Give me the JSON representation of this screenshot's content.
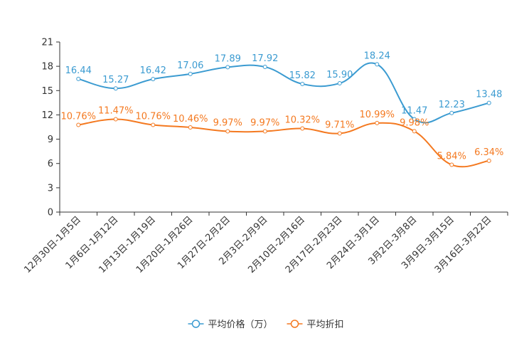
{
  "chart_data": {
    "type": "line",
    "title": "",
    "xlabel": "",
    "ylabel": "",
    "ylim": [
      0,
      21
    ],
    "yticks": [
      0,
      3,
      6,
      9,
      12,
      15,
      18,
      21
    ],
    "categories": [
      "12月30日-1月5日",
      "1月6日-1月12日",
      "1月13日-1月19日",
      "1月20日-1月26日",
      "1月27日-2月2日",
      "2月3日-2月9日",
      "2月10日-2月16日",
      "2月17日-2月23日",
      "2月24日-3月1日",
      "3月2日-3月8日",
      "3月9日-3月15日",
      "3月16日-3月22日"
    ],
    "series": [
      {
        "name": "平均价格（万）",
        "color": "#3b9bd1",
        "values": [
          16.44,
          15.27,
          16.42,
          17.06,
          17.89,
          17.92,
          15.82,
          15.9,
          18.24,
          11.47,
          12.23,
          13.48
        ],
        "labels": [
          "16.44",
          "15.27",
          "16.42",
          "17.06",
          "17.89",
          "17.92",
          "15.82",
          "15.90",
          "18.24",
          "11.47",
          "12.23",
          "13.48"
        ]
      },
      {
        "name": "平均折扣",
        "color": "#f47920",
        "values": [
          10.76,
          11.47,
          10.76,
          10.46,
          9.97,
          9.97,
          10.32,
          9.71,
          10.99,
          9.98,
          5.84,
          6.34
        ],
        "labels": [
          "10.76%",
          "11.47%",
          "10.76%",
          "10.46%",
          "9.97%",
          "9.97%",
          "10.32%",
          "9.71%",
          "10.99%",
          "9.98%",
          "5.84%",
          "6.34%"
        ]
      }
    ],
    "legend": "bottom-center"
  }
}
